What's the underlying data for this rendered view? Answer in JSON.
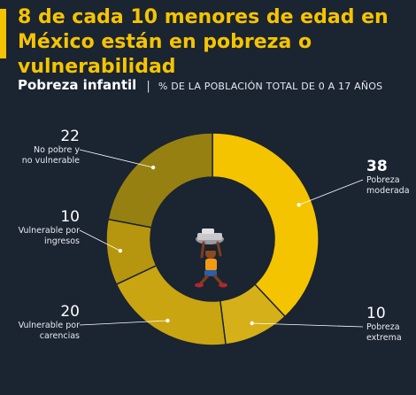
{
  "header": {
    "title": "8 de cada 10 menores de edad en México están en pobreza o vulnerabilidad",
    "subtitle_main": "Pobreza infantil",
    "subtitle_sep": "|",
    "subtitle_rest": "% DE LA POBLACIÓN TOTAL DE 0 A 17 AÑOS"
  },
  "chart_data": {
    "type": "pie",
    "variant": "donut",
    "unit": "%",
    "start": "top, clockwise",
    "slices": [
      {
        "name": "Pobreza moderada",
        "value": 38,
        "label_value": "38",
        "label_lines": [
          "Pobreza",
          "moderada"
        ],
        "color": "#f5c400",
        "side": "right",
        "bold": true
      },
      {
        "name": "Pobreza extrema",
        "value": 10,
        "label_value": "10",
        "label_lines": [
          "Pobreza",
          "extrema"
        ],
        "color": "#d6b018",
        "side": "right",
        "bold": false
      },
      {
        "name": "Vulnerable por carencias",
        "value": 20,
        "label_value": "20",
        "label_lines": [
          "Vulnerable por",
          "carencias"
        ],
        "color": "#c9a512",
        "side": "left",
        "bold": false
      },
      {
        "name": "Vulnerable por ingresos",
        "value": 10,
        "label_value": "10",
        "label_lines": [
          "Vulnerable por",
          "ingresos"
        ],
        "color": "#b7960f",
        "side": "left",
        "bold": false
      },
      {
        "name": "No pobre y no vulnerable",
        "value": 22,
        "label_value": "22",
        "label_lines": [
          "No pobre y",
          "no vulnerable"
        ],
        "color": "#978012",
        "side": "left",
        "bold": false
      }
    ]
  },
  "illustration": {
    "icon": "child-carrying-load-icon"
  }
}
